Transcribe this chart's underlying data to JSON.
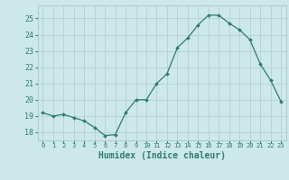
{
  "x": [
    0,
    1,
    2,
    3,
    4,
    5,
    6,
    7,
    8,
    9,
    10,
    11,
    12,
    13,
    14,
    15,
    16,
    17,
    18,
    19,
    20,
    21,
    22,
    23
  ],
  "y": [
    19.2,
    19.0,
    19.1,
    18.9,
    18.7,
    18.3,
    17.8,
    17.85,
    19.2,
    20.0,
    20.0,
    21.0,
    21.6,
    23.2,
    23.8,
    24.6,
    25.2,
    25.2,
    24.7,
    24.3,
    23.7,
    22.2,
    21.2,
    19.9
  ],
  "line_color": "#2e7d6e",
  "marker": "D",
  "marker_size": 2.0,
  "bg_color": "#cce8e8",
  "grid_major_color": "#b0cccc",
  "grid_minor_color": "#c4dada",
  "xlabel": "Humidex (Indice chaleur)",
  "ylim": [
    17.5,
    25.8
  ],
  "xlim": [
    -0.5,
    23.5
  ],
  "yticks": [
    18,
    19,
    20,
    21,
    22,
    23,
    24,
    25
  ],
  "xtick_labels": [
    "0",
    "1",
    "2",
    "3",
    "4",
    "5",
    "6",
    "7",
    "8",
    "9",
    "10",
    "11",
    "12",
    "13",
    "14",
    "15",
    "16",
    "17",
    "18",
    "19",
    "20",
    "21",
    "22",
    "23"
  ],
  "axis_label_color": "#2e7d6e",
  "tick_color": "#2e7d6e",
  "font_family": "monospace",
  "xlabel_fontsize": 7,
  "xtick_fontsize": 5,
  "ytick_fontsize": 6
}
